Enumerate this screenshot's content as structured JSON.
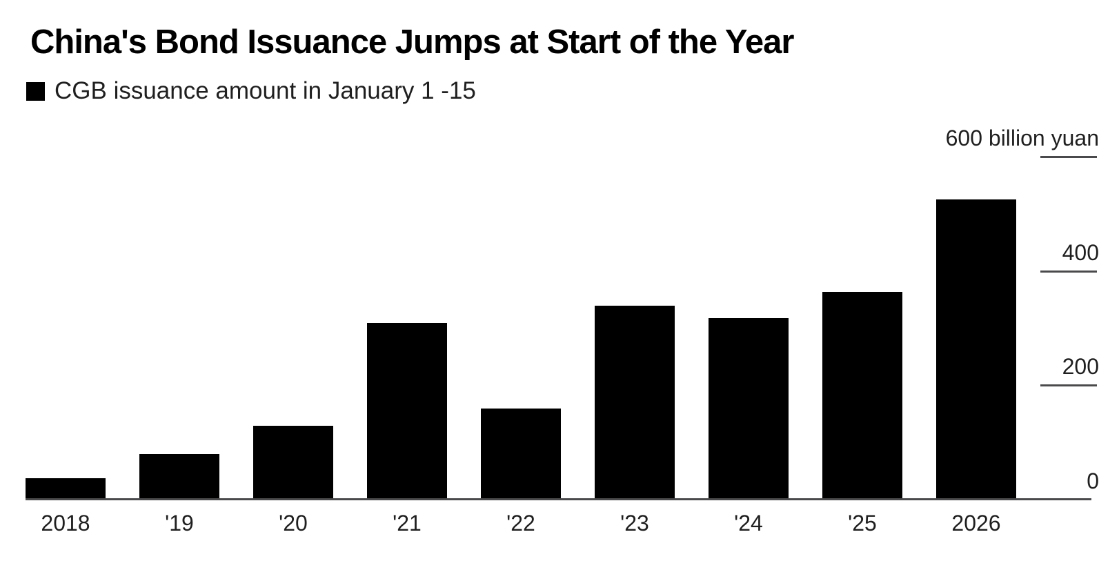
{
  "header": {
    "title": "China's Bond Issuance Jumps at Start of the Year",
    "legend": {
      "marker_icon": "square-swatch",
      "label": "CGB issuance amount in January 1 -15"
    }
  },
  "chart_data": {
    "type": "bar",
    "title": "China's Bond Issuance Jumps at Start of the Year",
    "legend": "CGB issuance amount in January 1 -15",
    "categories": [
      "2018",
      "'19",
      "'20",
      "'21",
      "'22",
      "'23",
      "'24",
      "'25",
      "2026"
    ],
    "values": [
      37,
      80,
      129,
      309,
      159,
      339,
      318,
      363,
      525
    ],
    "unit": "billion yuan",
    "xlabel": "",
    "ylabel": "600 billion yuan",
    "ylim": [
      0,
      600
    ],
    "y_ticks": [
      {
        "value": 0,
        "label": "0",
        "line": false
      },
      {
        "value": 200,
        "label": "200",
        "line": true
      },
      {
        "value": 400,
        "label": "400",
        "line": true
      },
      {
        "value": 600,
        "label": "600 billion yuan",
        "line": true
      }
    ],
    "tick_position": "right",
    "grid": false,
    "legend_position": "top-left",
    "bar_color": "#000000"
  },
  "colors": {
    "background": "#ffffff",
    "bar": "#000000",
    "axis": "#4a4a4c",
    "title_text": "#000000",
    "tick_text": "#1f1f1f"
  }
}
